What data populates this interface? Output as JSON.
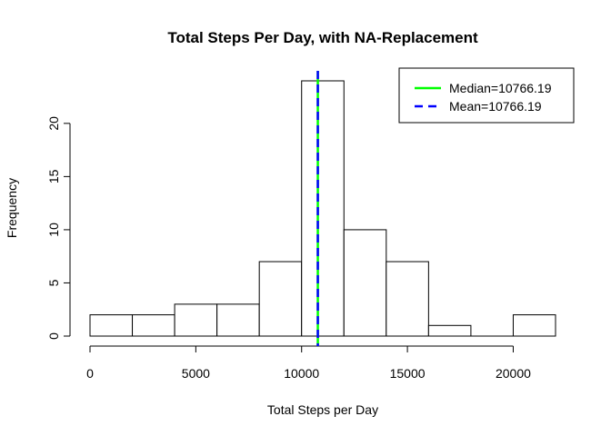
{
  "chart_data": {
    "type": "bar",
    "subtype": "histogram",
    "title": "Total Steps Per Day, with NA-Replacement",
    "xlabel": "Total Steps per Day",
    "ylabel": "Frequency",
    "bin_edges": [
      0,
      2000,
      4000,
      6000,
      8000,
      10000,
      12000,
      14000,
      16000,
      18000,
      20000,
      22000
    ],
    "values": [
      2,
      2,
      3,
      3,
      7,
      24,
      10,
      7,
      1,
      0,
      2
    ],
    "xlim": [
      0,
      22000
    ],
    "ylim": [
      0,
      24
    ],
    "x_ticks": [
      0,
      5000,
      10000,
      15000,
      20000
    ],
    "y_ticks": [
      0,
      5,
      10,
      15,
      20
    ],
    "grid": false,
    "bar_fill": "#ffffff",
    "bar_stroke": "#000000",
    "reference_lines": [
      {
        "name": "Median=10766.19",
        "value": 10766.19,
        "color": "#00ff00",
        "style": "solid"
      },
      {
        "name": "Mean=10766.19",
        "value": 10766.19,
        "color": "#0000ff",
        "style": "dashed"
      }
    ],
    "legend": {
      "position": "top-right",
      "entries": [
        "Median=10766.19",
        "Mean=10766.19"
      ]
    }
  }
}
